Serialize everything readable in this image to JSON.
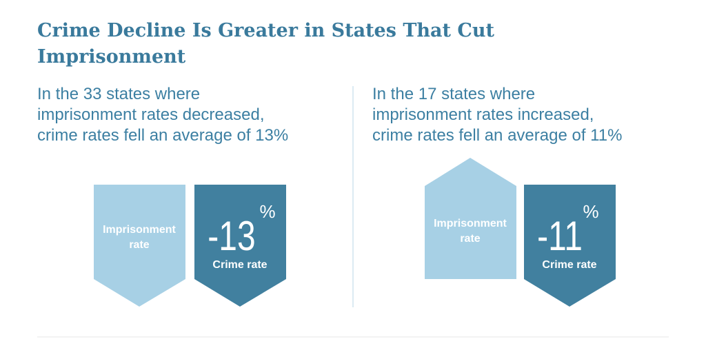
{
  "title": "Crime Decline Is Greater in States That Cut Imprisonment",
  "panels": [
    {
      "text_lines": [
        "In the 33 states where",
        "imprisonment rates decreased,",
        "crime rates fell an average of 13%"
      ],
      "imprisonment_label_lines": [
        "Imprisonment",
        "rate"
      ],
      "crime_value": "-13",
      "crime_unit": "%",
      "crime_label": "Crime rate"
    },
    {
      "text_lines": [
        "In the 17 states where",
        "imprisonment rates increased,",
        "crime rates fell an average of 11%"
      ],
      "imprisonment_label_lines": [
        "Imprisonment",
        "rate"
      ],
      "crime_value": "-11",
      "crime_unit": "%",
      "crime_label": "Crime rate"
    }
  ]
}
